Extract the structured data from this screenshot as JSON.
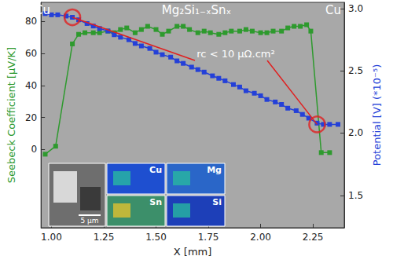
{
  "chart_data": {
    "type": "line",
    "x_label": "X [mm]",
    "y_label": "Seebeck Coefficient [μV/K]",
    "y2_label": "Potential [V] (*10⁻⁵)",
    "xlim": [
      0.95,
      2.4
    ],
    "xticks": [
      {
        "value": 1.0,
        "label": "1.00"
      },
      1.25,
      {
        "value": 1.5,
        "label": "1.50"
      },
      1.75,
      {
        "value": 2.0,
        "label": "2.00"
      },
      2.25
    ],
    "ylim": [
      -49,
      92
    ],
    "yticks": [
      0,
      20,
      40,
      60,
      80
    ],
    "y2lim": [
      1.24,
      3.05
    ],
    "y2ticks": [
      1.5,
      {
        "value": 2.0,
        "label": "2.0"
      },
      2.5,
      {
        "value": 3.0,
        "label": "3.0"
      }
    ],
    "grid": false,
    "series": [
      {
        "color": "#2e9a2e",
        "marker": "square",
        "axis": "y",
        "x": [
          0.97,
          1.02,
          1.1,
          1.13,
          1.16,
          1.2,
          1.23,
          1.27,
          1.3,
          1.33,
          1.36,
          1.4,
          1.43,
          1.46,
          1.5,
          1.53,
          1.56,
          1.6,
          1.63,
          1.66,
          1.7,
          1.73,
          1.76,
          1.8,
          1.83,
          1.86,
          1.9,
          1.93,
          1.96,
          2.0,
          2.03,
          2.06,
          2.1,
          2.13,
          2.16,
          2.19,
          2.22,
          2.24,
          2.29,
          2.33
        ],
        "values": [
          -3,
          2,
          66,
          72,
          73,
          73,
          73,
          74,
          73,
          75,
          76,
          73,
          75,
          77,
          75,
          72,
          74,
          77,
          77,
          75,
          73,
          74,
          73,
          72,
          73,
          74,
          74,
          75,
          74,
          73,
          73,
          74,
          74,
          76,
          77,
          77,
          78,
          74,
          -2,
          -2
        ]
      },
      {
        "color": "#2440d8",
        "marker": "square",
        "axis": "y2",
        "x": [
          0.97,
          1.0,
          1.03,
          1.07,
          1.1,
          1.13,
          1.17,
          1.2,
          1.23,
          1.27,
          1.3,
          1.33,
          1.37,
          1.4,
          1.43,
          1.47,
          1.5,
          1.53,
          1.57,
          1.6,
          1.63,
          1.67,
          1.7,
          1.73,
          1.77,
          1.8,
          1.83,
          1.87,
          1.9,
          1.93,
          1.97,
          2.0,
          2.03,
          2.07,
          2.1,
          2.13,
          2.17,
          2.2,
          2.23,
          2.27,
          2.3,
          2.33,
          2.37
        ],
        "values": [
          2.96,
          2.95,
          2.95,
          2.94,
          2.93,
          2.91,
          2.88,
          2.86,
          2.84,
          2.82,
          2.79,
          2.77,
          2.75,
          2.72,
          2.7,
          2.68,
          2.65,
          2.63,
          2.61,
          2.58,
          2.56,
          2.53,
          2.51,
          2.49,
          2.46,
          2.44,
          2.42,
          2.39,
          2.37,
          2.34,
          2.32,
          2.3,
          2.27,
          2.25,
          2.23,
          2.2,
          2.18,
          2.15,
          2.12,
          2.08,
          2.07,
          2.07,
          2.07
        ]
      }
    ],
    "annotations": [
      {
        "text": "rc < 10 μΩ.cm²",
        "color": "#e02020",
        "axis": "y2",
        "points": [
          [
            1.1,
            2.93
          ],
          [
            2.27,
            2.07
          ]
        ]
      }
    ],
    "region_labels": [
      "Cu",
      "Mg₂Si₁₋ₓSnₓ",
      "Cu"
    ],
    "inset_labels": [
      "Cu",
      "Mg",
      "Sn",
      "Si"
    ],
    "scale_bar": "5 μm"
  }
}
